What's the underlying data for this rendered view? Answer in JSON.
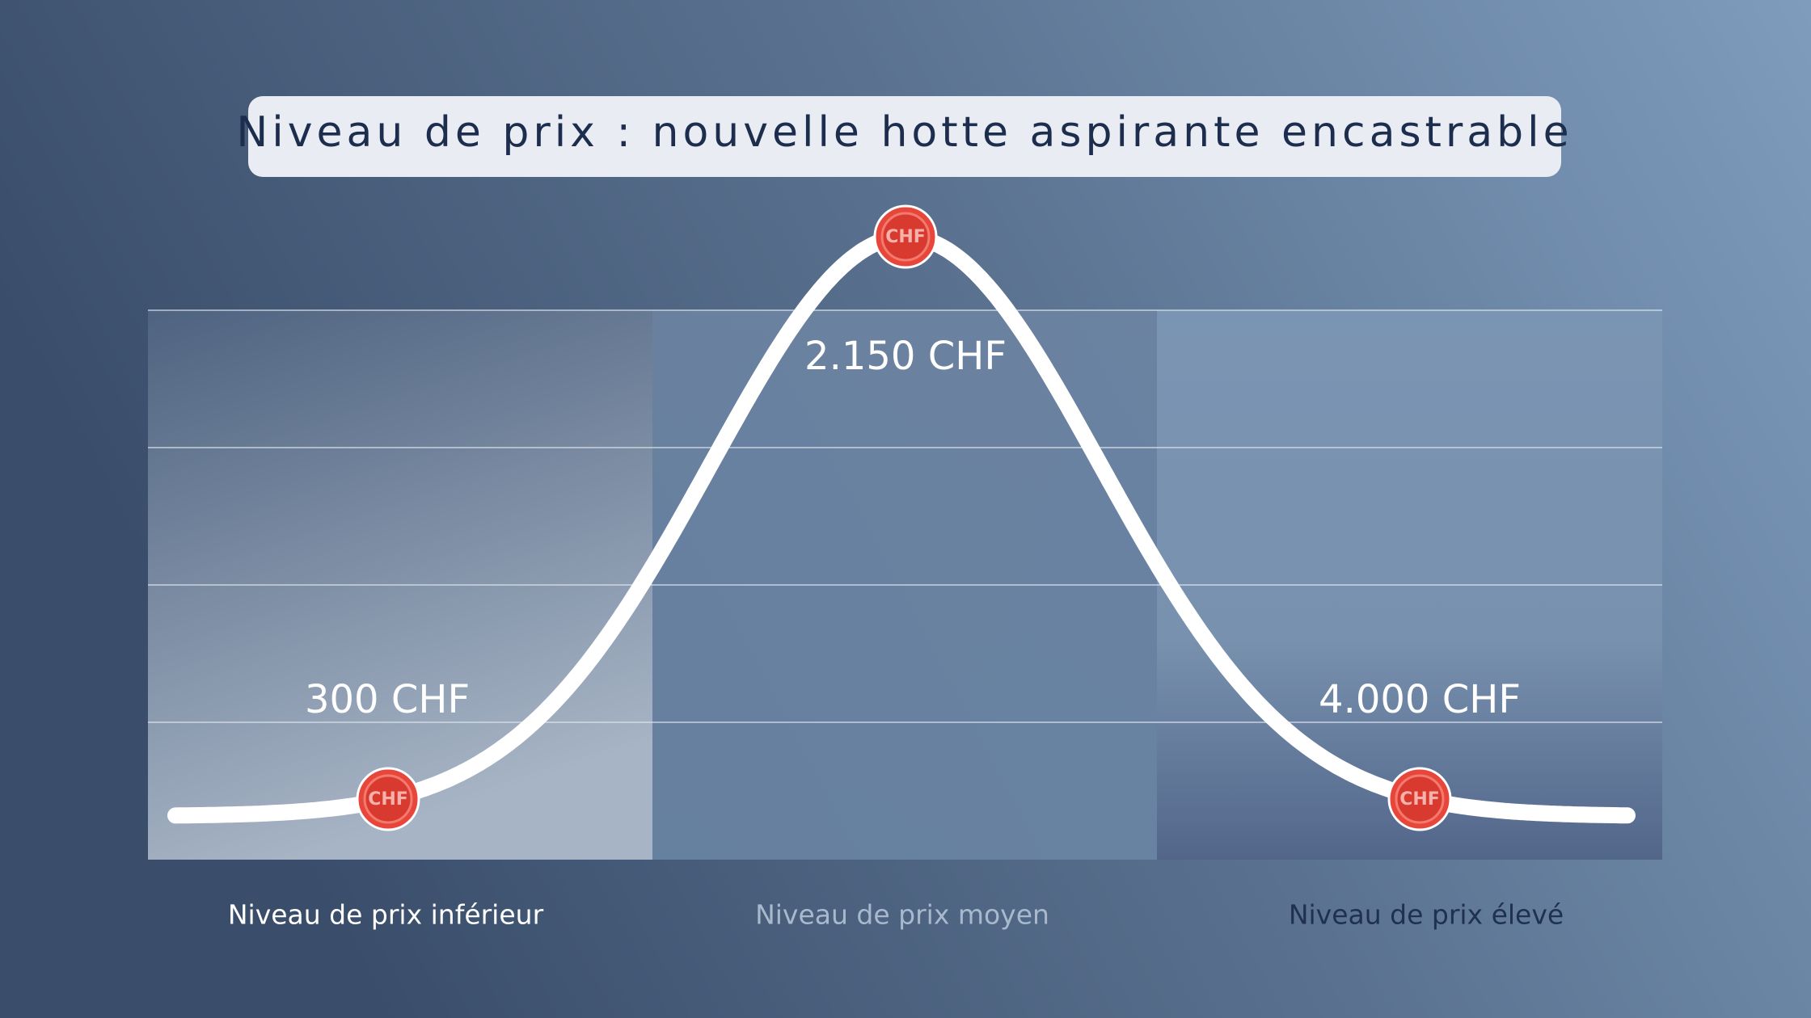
{
  "header": {
    "title": "Niveau de prix : nouvelle hotte aspirante encastrable"
  },
  "marker_text": "CHF",
  "prices": [
    "300 CHF",
    "2.150 CHF",
    "4.000 CHF"
  ],
  "zones": [
    "Niveau de prix inférieur",
    "Niveau de prix moyen",
    "Niveau de prix élevé"
  ]
}
